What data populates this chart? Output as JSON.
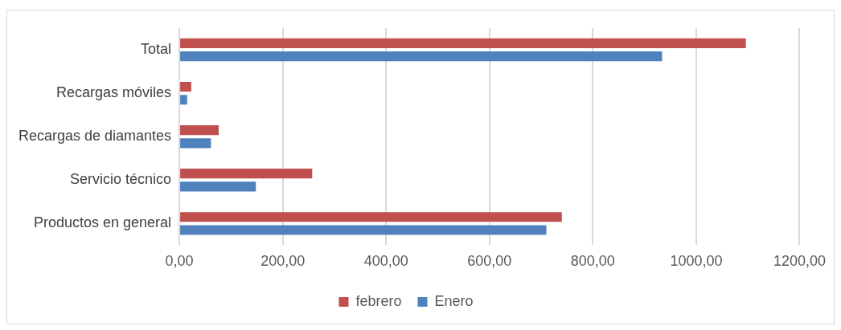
{
  "chart_data": {
    "type": "bar",
    "orientation": "horizontal",
    "categories": [
      "Total",
      "Recargas móviles",
      "Recargas de diamantes",
      "Servicio técnico",
      "Productos en general"
    ],
    "series": [
      {
        "name": "febrero",
        "color": "#c0504d",
        "values": [
          1096,
          23,
          76,
          257,
          740
        ]
      },
      {
        "name": "Enero",
        "color": "#4f81bd",
        "values": [
          934,
          15,
          61,
          148,
          710
        ]
      }
    ],
    "xlim": [
      0,
      1200
    ],
    "xticks": [
      {
        "value": 0,
        "label": "0,00"
      },
      {
        "value": 200,
        "label": "200,00"
      },
      {
        "value": 400,
        "label": "400,00"
      },
      {
        "value": 600,
        "label": "600,00"
      },
      {
        "value": 800,
        "label": "800,00"
      },
      {
        "value": 1000,
        "label": "1000,00"
      },
      {
        "value": 1200,
        "label": "1200,00"
      }
    ],
    "grid": "x",
    "legend": "bottom"
  }
}
